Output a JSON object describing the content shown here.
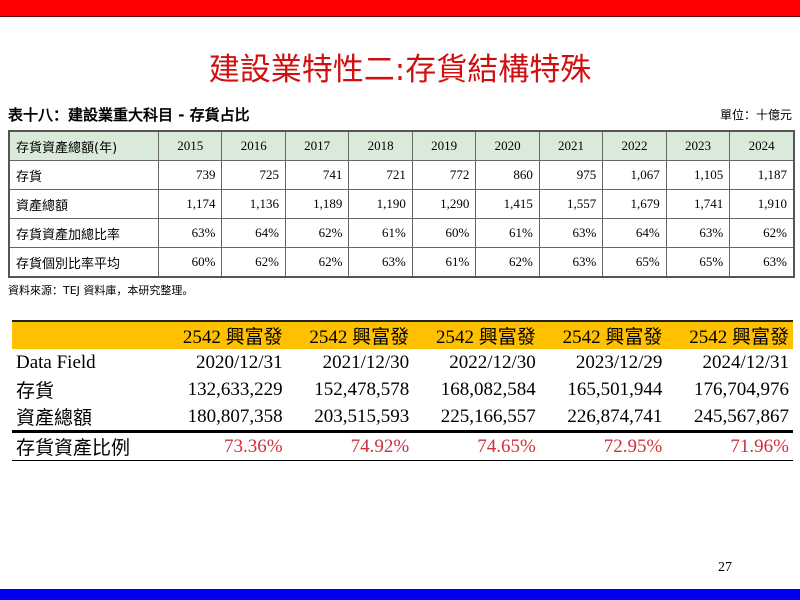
{
  "slide": {
    "title": "建設業特性二:存貨結構特殊",
    "page_number": "27",
    "colors": {
      "top_bar": "#ff0000",
      "bottom_bar": "#0000f0",
      "title": "#d01010",
      "table_header": "#d9eadb",
      "band": "#ffc000",
      "ratio": "#d0303a"
    }
  },
  "table1": {
    "caption": "表十八：建設業重大科目 - 存貨占比",
    "unit": "單位：十億元",
    "header": [
      "存貨資產總額(年)",
      "2015",
      "2016",
      "2017",
      "2018",
      "2019",
      "2020",
      "2021",
      "2022",
      "2023",
      "2024"
    ],
    "rows": [
      [
        "存貨",
        "739",
        "725",
        "741",
        "721",
        "772",
        "860",
        "975",
        "1,067",
        "1,105",
        "1,187"
      ],
      [
        "資產總額",
        "1,174",
        "1,136",
        "1,189",
        "1,190",
        "1,290",
        "1,415",
        "1,557",
        "1,679",
        "1,741",
        "1,910"
      ],
      [
        "存貨資產加總比率",
        "63%",
        "64%",
        "62%",
        "61%",
        "60%",
        "61%",
        "63%",
        "64%",
        "63%",
        "62%"
      ],
      [
        "存貨個別比率平均",
        "60%",
        "62%",
        "62%",
        "63%",
        "61%",
        "62%",
        "63%",
        "65%",
        "65%",
        "63%"
      ]
    ],
    "source": "資料來源：TEJ 資料庫，本研究整理。"
  },
  "table2": {
    "header": [
      "",
      "2542 興富發",
      "2542 興富發",
      "2542 興富發",
      "2542 興富發",
      "2542 興富發"
    ],
    "rows": [
      [
        "Data Field",
        "2020/12/31",
        "2021/12/30",
        "2022/12/30",
        "2023/12/29",
        "2024/12/31"
      ],
      [
        "存貨",
        "132,633,229",
        "152,478,578",
        "168,082,584",
        "165,501,944",
        "176,704,976"
      ],
      [
        "資產總額",
        "180,807,358",
        "203,515,593",
        "225,166,557",
        "226,874,741",
        "245,567,867"
      ]
    ],
    "ratio_row": [
      "存貨資產比例",
      "73.36%",
      "74.92%",
      "74.65%",
      "72.95%",
      "71.96%"
    ]
  }
}
